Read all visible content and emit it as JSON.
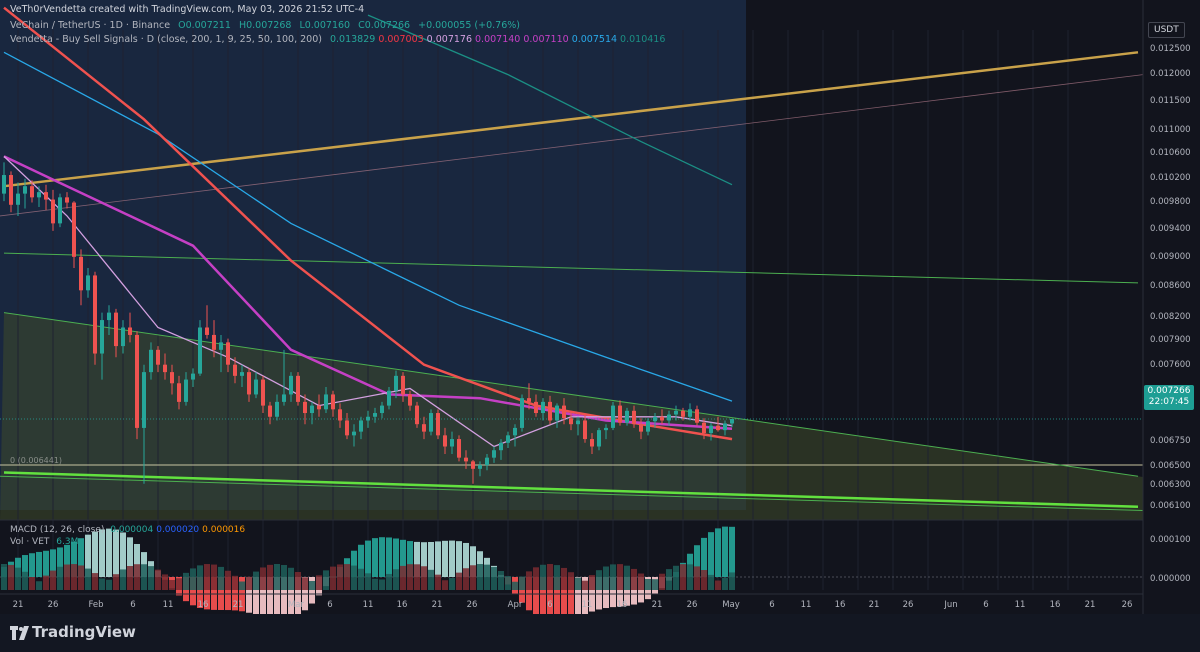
{
  "header": {
    "credit": "VeTh0rVendetta created with TradingView.com, May 03, 2026 21:52 UTC-4",
    "symbol": "VeChain / TetherUS · 1D · Binance",
    "ohlc": {
      "open": "O0.007211",
      "high": "H0.007268",
      "low": "L0.007160",
      "close": "C0.007266",
      "change": "+0.000055 (+0.76%)"
    },
    "indicator": {
      "name": "Vendetta - Buy Sell Signals · D (close, 200, 1, 9, 25, 50, 100, 200)",
      "values": [
        {
          "text": "0.013829",
          "color": "#26a69a"
        },
        {
          "text": "0.007003",
          "color": "#f23645"
        },
        {
          "text": "0.007176",
          "color": "#d3a0e0"
        },
        {
          "text": "0.007140",
          "color": "#c540c5"
        },
        {
          "text": "0.007110",
          "color": "#c540c5"
        },
        {
          "text": "0.007514",
          "color": "#29a8e8"
        },
        {
          "text": "0.010416",
          "color": "#1b8f84"
        }
      ]
    }
  },
  "price_axis": {
    "currency": "USDT",
    "labels": [
      "0.012500",
      "0.012000",
      "0.011500",
      "0.011000",
      "0.010600",
      "0.010200",
      "0.009800",
      "0.009400",
      "0.009000",
      "0.008600",
      "0.008200",
      "0.007900",
      "0.007600",
      "0.006750",
      "0.006500",
      "0.006300",
      "0.006100"
    ],
    "current_price": "0.007266",
    "countdown": "22:07:45",
    "macd_labels": [
      "0.000100",
      "0.000000"
    ]
  },
  "time_axis": {
    "labels": [
      "21",
      "26",
      "Feb",
      "6",
      "11",
      "16",
      "21",
      "Mar",
      "6",
      "11",
      "16",
      "21",
      "26",
      "Apr",
      "6",
      "11",
      "16",
      "21",
      "26",
      "May",
      "6",
      "11",
      "16",
      "21",
      "26",
      "Jun",
      "6",
      "11",
      "16",
      "21",
      "26"
    ]
  },
  "fib_label": "0 (0.006441)",
  "macd": {
    "label": "MACD (12, 26, close)",
    "values": [
      {
        "text": "0.000004",
        "color": "#26a69a"
      },
      {
        "text": "0.000020",
        "color": "#2962ff"
      },
      {
        "text": "0.000016",
        "color": "#ff9800"
      }
    ]
  },
  "volume": {
    "label": "Vol · VET",
    "value": "6.3M"
  },
  "colors": {
    "up": "#26a69a",
    "down": "#ef5350",
    "ma_red": "#f0524f",
    "ma_magenta": "#c540c5",
    "ma_pink": "#d3a0e0",
    "ma_blue": "#29a8e8",
    "ma_teal": "#1b8f84",
    "trend_gold": "#c9a24a",
    "wedge_green": "#4caf50",
    "bright_green": "#62e13f"
  },
  "chart_data": {
    "type": "candlestick",
    "timeframe": "1D",
    "x_range": [
      "2026-01-19",
      "2026-06-30"
    ],
    "ylim": [
      0.00605,
      0.0128
    ],
    "candles_ohlc": [
      [
        "2026-01-19",
        0.0103,
        0.01072,
        0.0102,
        0.01055
      ],
      [
        "2026-01-20",
        0.01055,
        0.0106,
        0.01005,
        0.01015
      ],
      [
        "2026-01-21",
        0.01015,
        0.01045,
        0.01,
        0.0103
      ],
      [
        "2026-01-22",
        0.0103,
        0.0105,
        0.0101,
        0.0104
      ],
      [
        "2026-01-23",
        0.0104,
        0.01048,
        0.01018,
        0.01025
      ],
      [
        "2026-01-24",
        0.01025,
        0.0104,
        0.01012,
        0.01032
      ],
      [
        "2026-01-25",
        0.01032,
        0.01042,
        0.01008,
        0.01022
      ],
      [
        "2026-01-26",
        0.01022,
        0.01035,
        0.0098,
        0.0099
      ],
      [
        "2026-01-27",
        0.0099,
        0.0103,
        0.00985,
        0.01025
      ],
      [
        "2026-01-28",
        0.01025,
        0.01032,
        0.0101,
        0.01018
      ],
      [
        "2026-01-29",
        0.01018,
        0.0102,
        0.0093,
        0.00945
      ],
      [
        "2026-01-30",
        0.00945,
        0.00955,
        0.0088,
        0.009
      ],
      [
        "2026-01-31",
        0.009,
        0.0093,
        0.0089,
        0.0092
      ],
      [
        "2026-02-01",
        0.0092,
        0.00925,
        0.008,
        0.00815
      ],
      [
        "2026-02-02",
        0.00815,
        0.0087,
        0.0078,
        0.0086
      ],
      [
        "2026-02-03",
        0.0086,
        0.0088,
        0.0084,
        0.0087
      ],
      [
        "2026-02-04",
        0.0087,
        0.00875,
        0.0081,
        0.00825
      ],
      [
        "2026-02-05",
        0.00825,
        0.0086,
        0.00815,
        0.0085
      ],
      [
        "2026-02-06",
        0.0085,
        0.0087,
        0.0083,
        0.0084
      ],
      [
        "2026-02-07",
        0.0084,
        0.00845,
        0.007,
        0.00715
      ],
      [
        "2026-02-08",
        0.00715,
        0.008,
        0.0064,
        0.0079
      ],
      [
        "2026-02-09",
        0.0079,
        0.0083,
        0.0078,
        0.0082
      ],
      [
        "2026-02-10",
        0.0082,
        0.00825,
        0.0079,
        0.008
      ],
      [
        "2026-02-11",
        0.008,
        0.00815,
        0.0078,
        0.0079
      ],
      [
        "2026-02-12",
        0.0079,
        0.008,
        0.0076,
        0.00775
      ],
      [
        "2026-02-13",
        0.00775,
        0.00785,
        0.0074,
        0.0075
      ],
      [
        "2026-02-14",
        0.0075,
        0.0079,
        0.00745,
        0.0078
      ],
      [
        "2026-02-15",
        0.0078,
        0.00795,
        0.0077,
        0.00788
      ],
      [
        "2026-02-16",
        0.00788,
        0.0086,
        0.00785,
        0.0085
      ],
      [
        "2026-02-17",
        0.0085,
        0.0088,
        0.00835,
        0.0084
      ],
      [
        "2026-02-18",
        0.0084,
        0.0086,
        0.0081,
        0.0082
      ],
      [
        "2026-02-19",
        0.0082,
        0.0084,
        0.0079,
        0.0083
      ],
      [
        "2026-02-20",
        0.0083,
        0.00835,
        0.0079,
        0.008
      ],
      [
        "2026-02-21",
        0.008,
        0.0081,
        0.00775,
        0.00785
      ],
      [
        "2026-02-22",
        0.00785,
        0.008,
        0.0077,
        0.0079
      ],
      [
        "2026-02-23",
        0.0079,
        0.00795,
        0.0075,
        0.0076
      ],
      [
        "2026-02-24",
        0.0076,
        0.0079,
        0.00755,
        0.0078
      ],
      [
        "2026-02-25",
        0.0078,
        0.00785,
        0.00735,
        0.00745
      ],
      [
        "2026-02-26",
        0.00745,
        0.0075,
        0.0072,
        0.0073
      ],
      [
        "2026-02-27",
        0.0073,
        0.0076,
        0.00725,
        0.0075
      ],
      [
        "2026-02-28",
        0.0075,
        0.0082,
        0.00745,
        0.0076
      ],
      [
        "2026-03-01",
        0.0076,
        0.0079,
        0.0075,
        0.00785
      ],
      [
        "2026-03-02",
        0.00785,
        0.0079,
        0.00745,
        0.0075
      ],
      [
        "2026-03-03",
        0.0075,
        0.0076,
        0.0072,
        0.00735
      ],
      [
        "2026-03-04",
        0.00735,
        0.0075,
        0.0072,
        0.00745
      ],
      [
        "2026-03-05",
        0.00745,
        0.0076,
        0.0073,
        0.0074
      ],
      [
        "2026-03-06",
        0.0074,
        0.0077,
        0.00735,
        0.0076
      ],
      [
        "2026-03-07",
        0.0076,
        0.00765,
        0.0073,
        0.0074
      ],
      [
        "2026-03-08",
        0.0074,
        0.00748,
        0.00715,
        0.00725
      ],
      [
        "2026-03-09",
        0.00725,
        0.00735,
        0.007,
        0.00705
      ],
      [
        "2026-03-10",
        0.00705,
        0.0072,
        0.0069,
        0.0071
      ],
      [
        "2026-03-11",
        0.0071,
        0.0073,
        0.007,
        0.00725
      ],
      [
        "2026-03-12",
        0.00725,
        0.00738,
        0.00715,
        0.0073
      ],
      [
        "2026-03-13",
        0.0073,
        0.00742,
        0.00722,
        0.00735
      ],
      [
        "2026-03-14",
        0.00735,
        0.0075,
        0.00728,
        0.00745
      ],
      [
        "2026-03-15",
        0.00745,
        0.0077,
        0.0074,
        0.00765
      ],
      [
        "2026-03-16",
        0.00765,
        0.00792,
        0.00755,
        0.00785
      ],
      [
        "2026-03-17",
        0.00785,
        0.0079,
        0.0075,
        0.0076
      ],
      [
        "2026-03-18",
        0.0076,
        0.00765,
        0.00738,
        0.00745
      ],
      [
        "2026-03-19",
        0.00745,
        0.0075,
        0.00715,
        0.0072
      ],
      [
        "2026-03-20",
        0.0072,
        0.0073,
        0.007,
        0.0071
      ],
      [
        "2026-03-21",
        0.0071,
        0.0074,
        0.00705,
        0.00735
      ],
      [
        "2026-03-22",
        0.00735,
        0.0074,
        0.007,
        0.00705
      ],
      [
        "2026-03-23",
        0.00705,
        0.00715,
        0.0068,
        0.0069
      ],
      [
        "2026-03-24",
        0.0069,
        0.0071,
        0.0068,
        0.007
      ],
      [
        "2026-03-25",
        0.007,
        0.00705,
        0.0067,
        0.00675
      ],
      [
        "2026-03-26",
        0.00675,
        0.00685,
        0.0066,
        0.0067
      ],
      [
        "2026-03-27",
        0.0067,
        0.00672,
        0.0064,
        0.0066
      ],
      [
        "2026-03-28",
        0.0066,
        0.0067,
        0.0065,
        0.00665
      ],
      [
        "2026-03-29",
        0.00665,
        0.0068,
        0.00658,
        0.00675
      ],
      [
        "2026-03-30",
        0.00675,
        0.0069,
        0.00668,
        0.00685
      ],
      [
        "2026-03-31",
        0.00685,
        0.007,
        0.00672,
        0.00695
      ],
      [
        "2026-04-01",
        0.00695,
        0.0071,
        0.00688,
        0.00705
      ],
      [
        "2026-04-02",
        0.00705,
        0.0072,
        0.0069,
        0.00715
      ],
      [
        "2026-04-03",
        0.00715,
        0.0076,
        0.0071,
        0.00755
      ],
      [
        "2026-04-04",
        0.00755,
        0.00775,
        0.0074,
        0.0075
      ],
      [
        "2026-04-05",
        0.0075,
        0.0076,
        0.0073,
        0.00735
      ],
      [
        "2026-04-06",
        0.00735,
        0.00755,
        0.00725,
        0.0075
      ],
      [
        "2026-04-07",
        0.0075,
        0.00758,
        0.0072,
        0.00725
      ],
      [
        "2026-04-08",
        0.00725,
        0.00748,
        0.00715,
        0.00745
      ],
      [
        "2026-04-09",
        0.00745,
        0.00755,
        0.0072,
        0.00728
      ],
      [
        "2026-04-10",
        0.00728,
        0.00738,
        0.00712,
        0.0072
      ],
      [
        "2026-04-11",
        0.0072,
        0.0073,
        0.00705,
        0.00725
      ],
      [
        "2026-04-12",
        0.00725,
        0.00732,
        0.00695,
        0.007
      ],
      [
        "2026-04-13",
        0.007,
        0.00708,
        0.0068,
        0.0069
      ],
      [
        "2026-04-14",
        0.0069,
        0.00715,
        0.00685,
        0.00712
      ],
      [
        "2026-04-15",
        0.00712,
        0.0072,
        0.007,
        0.00715
      ],
      [
        "2026-04-16",
        0.00715,
        0.0075,
        0.00712,
        0.00745
      ],
      [
        "2026-04-17",
        0.00745,
        0.00752,
        0.00718,
        0.00722
      ],
      [
        "2026-04-18",
        0.00722,
        0.00742,
        0.00718,
        0.00738
      ],
      [
        "2026-04-19",
        0.00738,
        0.00745,
        0.00715,
        0.0072
      ],
      [
        "2026-04-20",
        0.0072,
        0.00728,
        0.007,
        0.0071
      ],
      [
        "2026-04-21",
        0.0071,
        0.00728,
        0.00705,
        0.00724
      ],
      [
        "2026-04-22",
        0.00724,
        0.00735,
        0.00715,
        0.0073
      ],
      [
        "2026-04-23",
        0.0073,
        0.0074,
        0.0072,
        0.00725
      ],
      [
        "2026-04-24",
        0.00725,
        0.00738,
        0.00718,
        0.00733
      ],
      [
        "2026-04-25",
        0.00733,
        0.00745,
        0.00725,
        0.00738
      ],
      [
        "2026-04-26",
        0.00738,
        0.00742,
        0.00725,
        0.0073
      ],
      [
        "2026-04-27",
        0.0073,
        0.00748,
        0.00725,
        0.0074
      ],
      [
        "2026-04-28",
        0.0074,
        0.00745,
        0.00718,
        0.00722
      ],
      [
        "2026-04-29",
        0.00722,
        0.00728,
        0.007,
        0.00708
      ],
      [
        "2026-04-30",
        0.00708,
        0.00722,
        0.00698,
        0.00718
      ],
      [
        "2026-05-01",
        0.00718,
        0.0073,
        0.0071,
        0.00712
      ],
      [
        "2026-05-02",
        0.00712,
        0.00725,
        0.00705,
        0.00721
      ],
      [
        "2026-05-03",
        0.00721,
        0.00727,
        0.00716,
        0.00727
      ]
    ],
    "moving_averages": [
      {
        "period": 200,
        "color": "#1b8f84",
        "points": [
          [
            "2026-03-12",
            0.0127
          ],
          [
            "2026-04-01",
            0.0119
          ],
          [
            "2026-04-20",
            0.011
          ],
          [
            "2026-05-03",
            0.01042
          ]
        ]
      },
      {
        "period": 100,
        "color": "#29a8e8",
        "points": [
          [
            "2026-01-19",
            0.0122
          ],
          [
            "2026-02-10",
            0.0111
          ],
          [
            "2026-03-01",
            0.0099
          ],
          [
            "2026-03-25",
            0.0088
          ],
          [
            "2026-04-15",
            0.0081
          ],
          [
            "2026-05-03",
            0.00751
          ]
        ]
      },
      {
        "period": 50,
        "color": "#f0524f",
        "points": [
          [
            "2026-01-19",
            0.0128
          ],
          [
            "2026-02-08",
            0.0113
          ],
          [
            "2026-03-01",
            0.0094
          ],
          [
            "2026-03-20",
            0.008
          ],
          [
            "2026-04-05",
            0.00745
          ],
          [
            "2026-04-20",
            0.0072
          ],
          [
            "2026-05-03",
            0.007
          ]
        ]
      },
      {
        "period": 25,
        "color": "#c540c5",
        "points": [
          [
            "2026-01-19",
            0.0108
          ],
          [
            "2026-01-28",
            0.0104
          ],
          [
            "2026-02-15",
            0.0096
          ],
          [
            "2026-03-01",
            0.0082
          ],
          [
            "2026-03-15",
            0.0076
          ],
          [
            "2026-03-28",
            0.00755
          ],
          [
            "2026-04-15",
            0.00725
          ],
          [
            "2026-05-03",
            0.00714
          ]
        ]
      },
      {
        "period": 9,
        "color": "#d3a0e0",
        "points": [
          [
            "2026-01-19",
            0.0108
          ],
          [
            "2026-01-28",
            0.01
          ],
          [
            "2026-02-10",
            0.0085
          ],
          [
            "2026-02-20",
            0.0081
          ],
          [
            "2026-03-05",
            0.00745
          ],
          [
            "2026-03-18",
            0.00768
          ],
          [
            "2026-03-30",
            0.0069
          ],
          [
            "2026-04-10",
            0.0073
          ],
          [
            "2026-04-25",
            0.0073
          ],
          [
            "2026-05-03",
            0.00718
          ]
        ]
      }
    ],
    "trendlines": [
      {
        "name": "long-term support",
        "color": "#c9a24a",
        "from": [
          "2026-01-19",
          0.0104
        ],
        "to": [
          "2026-06-30",
          0.0122
        ]
      },
      {
        "name": "wedge resistance",
        "color": "#4caf50",
        "from": [
          "2026-01-19",
          0.0087
        ],
        "to": [
          "2026-06-30",
          0.0065
        ]
      },
      {
        "name": "wedge support",
        "color": "#62e13f",
        "from": [
          "2026-01-19",
          0.00655
        ],
        "to": [
          "2026-06-30",
          0.00609
        ]
      },
      {
        "name": "horizontal",
        "color": "#4caf50",
        "from": [
          "2026-01-19",
          0.0095
        ],
        "to": [
          "2026-06-30",
          0.0091
        ]
      }
    ],
    "fib_zero": 0.006441,
    "macd_hist_range": [
      -0.00012,
      0.00012
    ],
    "annotations": []
  }
}
